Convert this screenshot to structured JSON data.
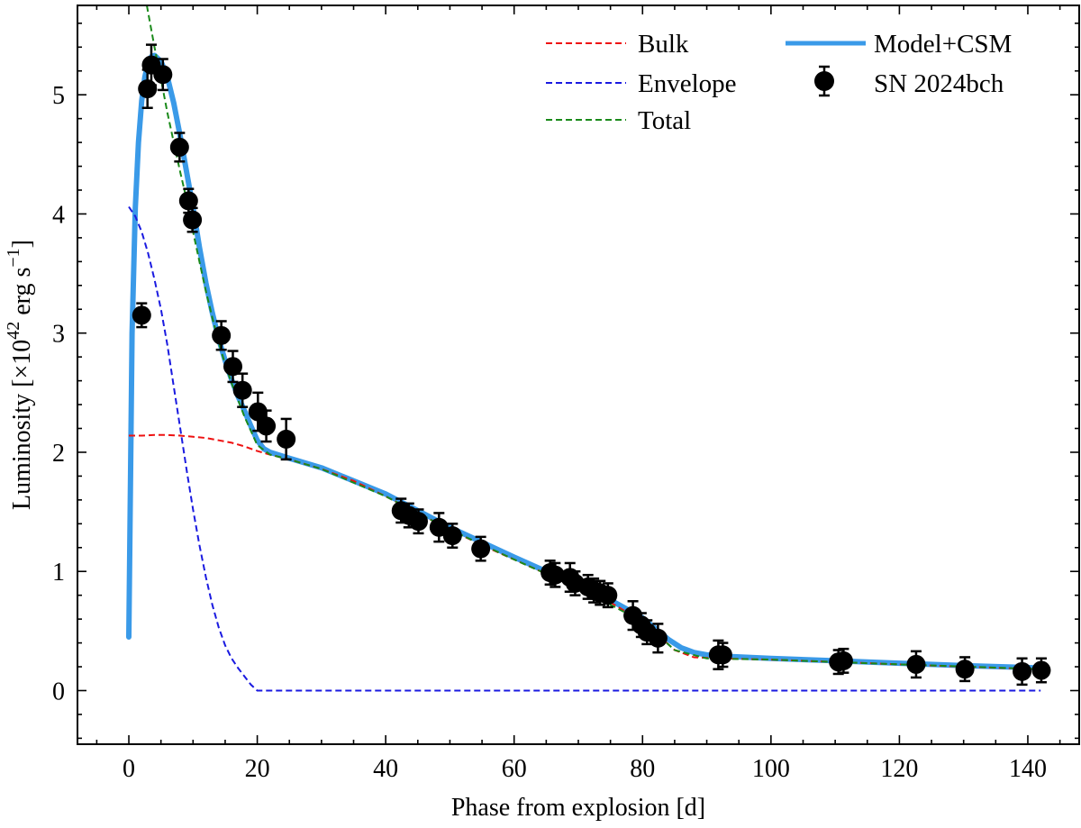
{
  "chart_data": {
    "type": "line",
    "title": "",
    "xlabel": "Phase from explosion [d]",
    "ylabel": "Luminosity [×10",
    "ylabel_sup": "42",
    "ylabel_unit": " erg s",
    "ylabel_unit_sup": "−1",
    "ylabel_close": "]",
    "xlim": [
      -8,
      148
    ],
    "ylim": [
      -0.45,
      5.75
    ],
    "grid": false,
    "legend_position": "top-right",
    "x_ticks": [
      0,
      20,
      40,
      60,
      80,
      100,
      120,
      140
    ],
    "x_tick_labels": [
      "0",
      "20",
      "40",
      "60",
      "80",
      "100",
      "120",
      "140"
    ],
    "y_ticks": [
      0,
      1,
      2,
      3,
      4,
      5
    ],
    "y_tick_labels": [
      "0",
      "1",
      "2",
      "3",
      "4",
      "5"
    ],
    "legend": [
      {
        "label": "Bulk",
        "series": "bulk"
      },
      {
        "label": "Envelope",
        "series": "envelope"
      },
      {
        "label": "Total",
        "series": "total"
      },
      {
        "label": "Model+CSM",
        "series": "model"
      },
      {
        "label": "SN 2024bch",
        "series": "observed"
      }
    ],
    "series": [
      {
        "name": "Bulk",
        "key": "bulk",
        "style": "dashed",
        "color": "#ee1111",
        "x": [
          0,
          2,
          4,
          6,
          8,
          10,
          12,
          14,
          16,
          18,
          20,
          22,
          25,
          30,
          35,
          40,
          45,
          50,
          55,
          60,
          65,
          70,
          75,
          80,
          82,
          85,
          88,
          92,
          100,
          110,
          120,
          130,
          142
        ],
        "y": [
          2.14,
          2.14,
          2.145,
          2.145,
          2.14,
          2.13,
          2.12,
          2.1,
          2.08,
          2.05,
          2.01,
          1.98,
          1.94,
          1.86,
          1.76,
          1.63,
          1.49,
          1.35,
          1.22,
          1.1,
          0.98,
          0.86,
          0.74,
          0.58,
          0.49,
          0.34,
          0.28,
          0.27,
          0.26,
          0.24,
          0.22,
          0.2,
          0.18
        ]
      },
      {
        "name": "Envelope",
        "key": "envelope",
        "style": "dashed",
        "color": "#1a1ae0",
        "x": [
          0,
          1,
          2,
          3,
          4,
          5,
          6,
          7,
          8,
          9,
          10,
          11,
          12,
          13,
          14,
          15,
          16,
          17,
          18,
          19,
          20,
          21,
          22,
          40,
          60,
          80,
          100,
          120,
          142
        ],
        "y": [
          4.06,
          3.98,
          3.85,
          3.67,
          3.45,
          3.2,
          2.9,
          2.55,
          2.2,
          1.85,
          1.52,
          1.22,
          0.95,
          0.72,
          0.53,
          0.38,
          0.27,
          0.19,
          0.12,
          0.05,
          0.0,
          0.0,
          0.0,
          0.0,
          0.0,
          0.0,
          0.0,
          0.0,
          0.0
        ]
      },
      {
        "name": "Total",
        "key": "total",
        "style": "dashed",
        "color": "#1a8a1a",
        "x": [
          2.8,
          4,
          5,
          6,
          7,
          8,
          9,
          10,
          11,
          12,
          13,
          14,
          15,
          16,
          17,
          18,
          19,
          20,
          22,
          25,
          30,
          40,
          50,
          60,
          70,
          80,
          85,
          90,
          100,
          120,
          142
        ],
        "y": [
          5.75,
          5.4,
          5.13,
          4.85,
          4.6,
          4.35,
          4.12,
          3.85,
          3.6,
          3.35,
          3.13,
          2.92,
          2.74,
          2.58,
          2.44,
          2.3,
          2.18,
          2.06,
          1.98,
          1.94,
          1.86,
          1.63,
          1.35,
          1.1,
          0.86,
          0.58,
          0.34,
          0.27,
          0.26,
          0.22,
          0.18
        ]
      },
      {
        "name": "Model+CSM",
        "key": "model",
        "style": "solid",
        "color": "#3a9ae8",
        "x": [
          0,
          0.5,
          1,
          1.5,
          2,
          2.5,
          3,
          3.5,
          4,
          5,
          6,
          7,
          8,
          9,
          10,
          11,
          12,
          13,
          14,
          15,
          16,
          17,
          18,
          19,
          20,
          21,
          22,
          25,
          30,
          40,
          50,
          60,
          70,
          75,
          80,
          82,
          84,
          86,
          88,
          90,
          92,
          100,
          110,
          120,
          130,
          142
        ],
        "y": [
          0.45,
          3.0,
          4.05,
          4.6,
          4.95,
          5.15,
          5.27,
          5.32,
          5.33,
          5.28,
          5.15,
          4.93,
          4.65,
          4.35,
          4.05,
          3.72,
          3.42,
          3.17,
          2.95,
          2.77,
          2.61,
          2.47,
          2.35,
          2.22,
          2.1,
          2.03,
          2.0,
          1.95,
          1.87,
          1.65,
          1.37,
          1.12,
          0.88,
          0.76,
          0.61,
          0.52,
          0.43,
          0.36,
          0.32,
          0.3,
          0.29,
          0.27,
          0.25,
          0.23,
          0.21,
          0.19
        ]
      },
      {
        "name": "SN 2024bch",
        "key": "observed",
        "style": "errorbar",
        "color": "#000000",
        "x": [
          2.0,
          2.9,
          3.5,
          5.3,
          7.9,
          9.3,
          9.9,
          14.4,
          16.2,
          17.7,
          20.1,
          21.4,
          24.5,
          42.4,
          43.6,
          45.1,
          48.3,
          50.4,
          54.8,
          65.6,
          66.4,
          68.7,
          69.5,
          71.5,
          72.4,
          73.4,
          74.6,
          78.5,
          79.8,
          80.7,
          82.4,
          91.8,
          92.5,
          110.5,
          111.3,
          122.6,
          130.2,
          139.1,
          142.1
        ],
        "y": [
          3.15,
          5.05,
          5.25,
          5.17,
          4.56,
          4.11,
          3.95,
          2.98,
          2.72,
          2.52,
          2.34,
          2.22,
          2.11,
          1.51,
          1.47,
          1.42,
          1.37,
          1.3,
          1.19,
          0.99,
          0.97,
          0.95,
          0.9,
          0.87,
          0.84,
          0.82,
          0.8,
          0.63,
          0.55,
          0.49,
          0.44,
          0.3,
          0.3,
          0.24,
          0.25,
          0.22,
          0.18,
          0.16,
          0.17
        ],
        "yerr": [
          0.1,
          0.16,
          0.17,
          0.13,
          0.12,
          0.1,
          0.1,
          0.12,
          0.13,
          0.14,
          0.16,
          0.13,
          0.17,
          0.1,
          0.1,
          0.1,
          0.12,
          0.1,
          0.1,
          0.1,
          0.1,
          0.12,
          0.1,
          0.1,
          0.1,
          0.1,
          0.1,
          0.12,
          0.1,
          0.1,
          0.12,
          0.12,
          0.1,
          0.1,
          0.1,
          0.11,
          0.1,
          0.11,
          0.1
        ]
      }
    ]
  }
}
